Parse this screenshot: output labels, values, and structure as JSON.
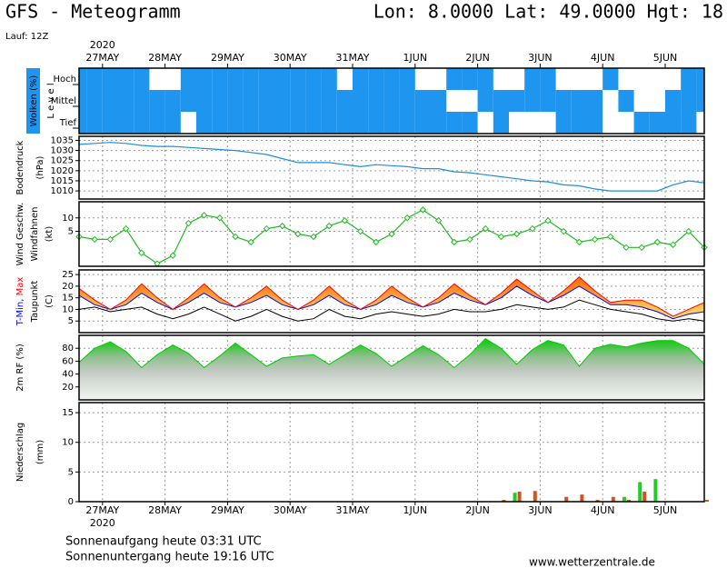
{
  "header": {
    "title": "GFS - Meteogramm",
    "location": "Lon: 8.0000 Lat: 49.0000 Hgt: 18",
    "run": "Lauf: 12Z"
  },
  "time_axis": {
    "year": "2020",
    "categories": [
      "27MAY",
      "28MAY",
      "29MAY",
      "30MAY",
      "31MAY",
      "1JUN",
      "2JUN",
      "3JUN",
      "4JUN",
      "5JUN"
    ]
  },
  "chart_data": [
    {
      "type": "cloud",
      "label": "Wolken (%)",
      "axis_label": "L e v e l",
      "series": [
        {
          "name": "Hoch",
          "color": "#1e96f0",
          "values": [
            100,
            100,
            100,
            100,
            100,
            0,
            0,
            100,
            100,
            100,
            100,
            100,
            100,
            100,
            100,
            100,
            100,
            0,
            100,
            100,
            100,
            100,
            0,
            0,
            100,
            100,
            100,
            0,
            0,
            100,
            100,
            0,
            0,
            0,
            100,
            0,
            0,
            0,
            0,
            100,
            100
          ]
        },
        {
          "name": "Mittel",
          "color": "#1e96f0",
          "values": [
            100,
            100,
            100,
            100,
            100,
            100,
            100,
            100,
            100,
            100,
            100,
            100,
            100,
            100,
            100,
            100,
            100,
            100,
            100,
            100,
            100,
            100,
            100,
            100,
            0,
            0,
            100,
            100,
            100,
            100,
            100,
            100,
            100,
            100,
            0,
            100,
            0,
            0,
            100,
            100,
            100
          ]
        },
        {
          "name": "Tief",
          "color": "#1e96f0",
          "values": [
            100,
            100,
            100,
            100,
            100,
            100,
            100,
            0,
            100,
            100,
            100,
            100,
            100,
            100,
            100,
            100,
            100,
            100,
            100,
            100,
            100,
            100,
            100,
            100,
            100,
            100,
            0,
            100,
            0,
            0,
            0,
            100,
            100,
            100,
            0,
            0,
            100,
            100,
            100,
            100,
            0
          ]
        }
      ]
    },
    {
      "type": "line",
      "label": "Bodendruck",
      "unit": "(hPa)",
      "color": "#1f8fd6",
      "values": [
        1033,
        1033.5,
        1034,
        1033.5,
        1032.5,
        1032,
        1032,
        1031.5,
        1031,
        1030.5,
        1030,
        1029,
        1028,
        1026,
        1024,
        1024,
        1024,
        1023,
        1022,
        1023,
        1022.5,
        1022,
        1021,
        1021,
        1019.5,
        1019,
        1018,
        1017,
        1016,
        1015,
        1014.5,
        1013,
        1012.5,
        1011,
        1010,
        1010,
        1010,
        1010,
        1013,
        1015,
        1014
      ],
      "ylim": [
        1006,
        1037
      ],
      "yticks": [
        1010,
        1015,
        1020,
        1025,
        1030,
        1035
      ]
    },
    {
      "type": "line",
      "markers": true,
      "label": "Wind Geschw.",
      "sublabel": "Windfahnen",
      "unit": "(kt)",
      "color": "#22b922",
      "values": [
        3,
        2,
        2,
        6,
        -3,
        -7,
        -4,
        8,
        11,
        10,
        3,
        1,
        6,
        7,
        4,
        3,
        7,
        9,
        5,
        1,
        4,
        10,
        13,
        9,
        1,
        2,
        6,
        3,
        4,
        6,
        9,
        5,
        1,
        2,
        3,
        -1,
        -1,
        1,
        0,
        5,
        -1
      ],
      "ylim": [
        -8,
        16
      ],
      "yticks": [
        5,
        10
      ]
    },
    {
      "type": "band",
      "unit": "(C)",
      "series": [
        {
          "name": "T-Min,",
          "color": "#0000ff",
          "values": [
            16,
            12,
            10,
            12,
            17,
            13,
            10,
            13,
            17,
            13,
            11,
            13,
            16,
            12,
            10,
            12,
            16,
            12,
            10,
            12,
            16,
            13,
            11,
            13,
            17,
            14,
            12,
            15,
            20,
            16,
            13,
            16,
            20,
            16,
            12,
            12,
            11,
            9,
            6,
            8,
            9
          ]
        },
        {
          "name": "Max",
          "color": "#ff0000",
          "values": [
            19,
            14,
            10,
            14,
            21,
            15,
            10,
            15,
            21,
            15,
            11,
            15,
            20,
            14,
            10,
            14,
            20,
            14,
            10,
            14,
            20,
            15,
            11,
            15,
            21,
            16,
            12,
            17,
            23,
            18,
            13,
            18,
            24,
            18,
            13,
            14,
            14,
            11,
            7,
            10,
            13
          ]
        },
        {
          "name": "Taupunkt",
          "color": "#000000",
          "values": [
            10,
            11,
            9,
            10,
            11,
            8,
            6,
            8,
            11,
            8,
            5,
            7,
            10,
            7,
            5,
            6,
            10,
            7,
            6,
            8,
            9,
            8,
            7,
            8,
            10,
            9,
            9,
            10,
            12,
            11,
            10,
            11,
            14,
            12,
            10,
            9,
            8,
            6,
            5,
            6,
            5
          ]
        }
      ],
      "ylim": [
        0,
        27
      ],
      "yticks": [
        5,
        10,
        15,
        20,
        25
      ]
    },
    {
      "type": "area",
      "label": "2m RF (%)",
      "color": "#00cc00",
      "values": [
        58,
        80,
        90,
        75,
        50,
        70,
        85,
        72,
        50,
        68,
        88,
        70,
        52,
        65,
        68,
        70,
        55,
        70,
        85,
        72,
        52,
        68,
        84,
        70,
        50,
        70,
        95,
        80,
        55,
        78,
        92,
        85,
        52,
        80,
        86,
        82,
        88,
        92,
        92,
        80,
        55
      ],
      "ylim": [
        0,
        100
      ],
      "yticks": [
        20,
        40,
        60,
        80
      ]
    },
    {
      "type": "bar",
      "label": "Niederschlag",
      "unit": "(mm)",
      "series": [
        {
          "color": "#22cc22",
          "values": [
            0,
            0,
            0,
            0,
            0,
            0,
            0,
            0,
            0,
            0,
            0,
            0,
            0,
            0,
            0,
            0,
            0,
            0,
            0,
            0,
            0,
            0,
            0,
            0,
            0,
            0,
            0,
            0,
            1.5,
            0,
            0,
            0,
            0,
            0,
            0,
            0.8,
            3.3,
            3.8,
            0,
            0,
            0
          ]
        },
        {
          "color": "#cc5522",
          "values": [
            0,
            0,
            0,
            0,
            0,
            0,
            0,
            0,
            0,
            0,
            0,
            0,
            0,
            0,
            0,
            0,
            0,
            0,
            0,
            0,
            0,
            0,
            0,
            0,
            0,
            0,
            0,
            0.3,
            1.7,
            1.8,
            0,
            0.8,
            1.2,
            0.3,
            0.8,
            0.3,
            1.7,
            0,
            0,
            0,
            0.3
          ]
        }
      ],
      "ylim": [
        0,
        16.7
      ],
      "yticks": [
        0,
        5,
        10,
        15
      ]
    }
  ],
  "footer": {
    "sunrise": "Sonnenaufgang heute 03:31 UTC",
    "sunset": "Sonnenuntergang heute 19:16 UTC",
    "source": "www.wetterzentrale.de"
  }
}
